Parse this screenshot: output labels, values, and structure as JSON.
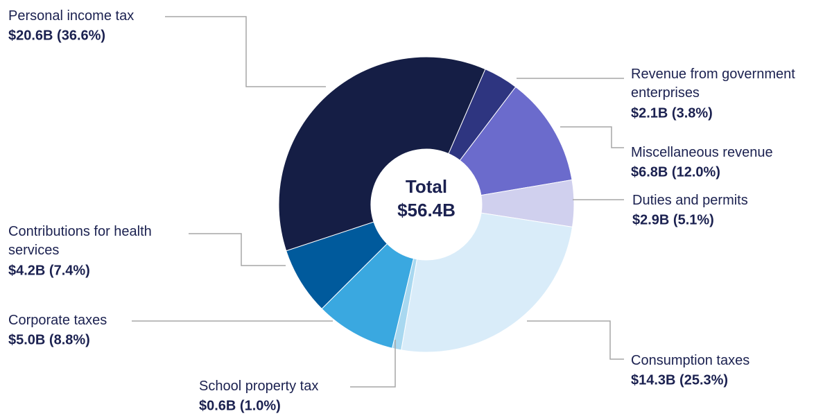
{
  "chart_data": {
    "type": "donut",
    "categories": [
      "Revenue from government enterprises",
      "Miscellaneous revenue",
      "Duties and permits",
      "Consumption taxes",
      "School property tax",
      "Corporate taxes",
      "Contributions for health services",
      "Personal income tax"
    ],
    "values": [
      3.8,
      12.0,
      5.1,
      25.3,
      1.0,
      8.8,
      7.4,
      36.6
    ],
    "value_labels": [
      "$2.1B (3.8%)",
      "$6.8B (12.0%)",
      "$2.9B (5.1%)",
      "$14.3B (25.3%)",
      "$0.6B (1.0%)",
      "$5.0B (8.8%)",
      "$4.2B (7.4%)",
      "$20.6B (36.6%)"
    ],
    "colors": [
      "#2e3580",
      "#6b6bcc",
      "#d0d0ee",
      "#d9ecf9",
      "#a8d8f0",
      "#3aa8e0",
      "#005a9c",
      "#151e45"
    ],
    "center_title": "Total",
    "center_value": "$56.4B"
  }
}
